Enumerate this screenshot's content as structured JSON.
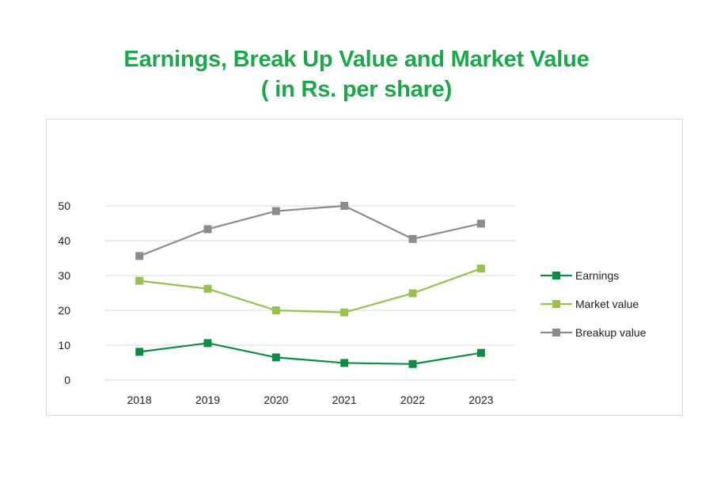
{
  "chart_data": {
    "type": "line",
    "title": "Earnings, Break Up Value and Market Value",
    "subtitle": "( in Rs. per share)",
    "xlabel": "",
    "ylabel": "",
    "categories": [
      "2018",
      "2019",
      "2020",
      "2021",
      "2022",
      "2023"
    ],
    "ylim": [
      0,
      50
    ],
    "yticks": [
      0,
      10,
      20,
      30,
      40,
      50
    ],
    "grid": true,
    "legend_position": "right",
    "series": [
      {
        "name": "Earnings",
        "color": "#0e8c43",
        "values": [
          8.1,
          10.6,
          6.5,
          4.9,
          4.6,
          7.8
        ]
      },
      {
        "name": "Market value",
        "color": "#99c14f",
        "values": [
          28.5,
          26.2,
          20.0,
          19.4,
          24.9,
          32.0
        ]
      },
      {
        "name": "Breakup value",
        "color": "#8c8c8c",
        "values": [
          35.6,
          43.3,
          48.5,
          50.0,
          40.5,
          44.9
        ]
      }
    ]
  }
}
